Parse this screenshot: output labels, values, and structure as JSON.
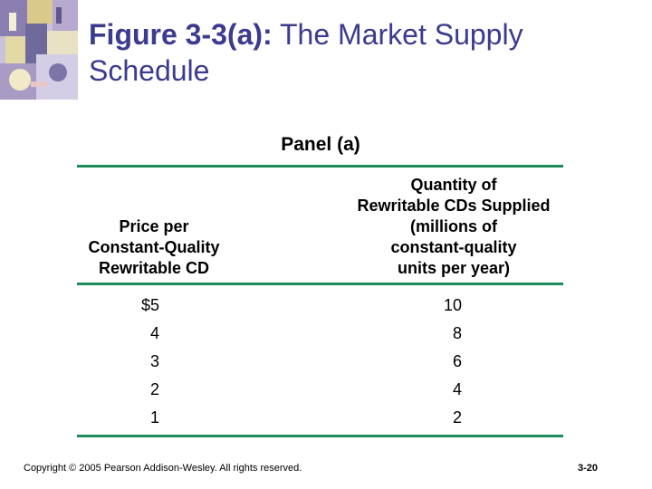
{
  "title": {
    "bold": "Figure 3-3(a):",
    "rest": " The Market Supply Schedule"
  },
  "panel": "Panel (a)",
  "table": {
    "headers": {
      "price": [
        "Price per",
        "Constant-Quality",
        "Rewritable CD"
      ],
      "quantity": [
        "Quantity of",
        "Rewritable CDs Supplied",
        "(millions of",
        "constant-quality",
        "units per year)"
      ]
    },
    "rows": [
      {
        "price": "$5",
        "quantity": "10"
      },
      {
        "price": "4",
        "quantity": "8"
      },
      {
        "price": "3",
        "quantity": "6"
      },
      {
        "price": "2",
        "quantity": "4"
      },
      {
        "price": "1",
        "quantity": "2"
      }
    ]
  },
  "footer": {
    "copyright": "Copyright © 2005 Pearson Addison-Wesley. All rights reserved.",
    "page": "3-20"
  },
  "colors": {
    "title": "#3b3b8f",
    "rule": "#1f8a5a"
  }
}
